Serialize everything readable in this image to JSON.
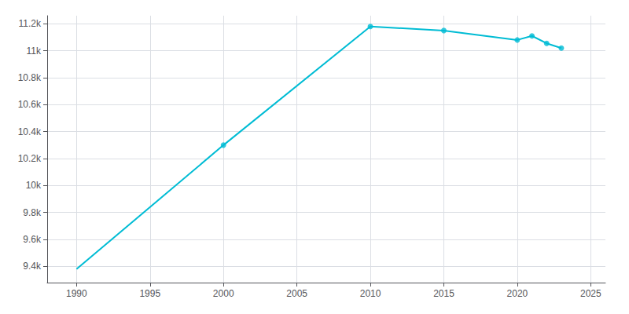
{
  "chart_data": {
    "type": "line",
    "x": [
      1990,
      2000,
      2010,
      2015,
      2020,
      2021,
      2022,
      2023
    ],
    "series": [
      {
        "type": "line",
        "color": "#00BCD4",
        "marker": "none",
        "values": [
          9380,
          10300,
          11180,
          11150,
          11080,
          11110,
          11055,
          11020
        ]
      },
      {
        "type": "scatter",
        "color": "#00BCD4",
        "marker": "circle",
        "x": [
          2000,
          2010,
          2015,
          2020,
          2021,
          2022,
          2023
        ],
        "values": [
          10300,
          11180,
          11150,
          11080,
          11110,
          11055,
          11020
        ]
      }
    ],
    "xlim": [
      1988,
      2026
    ],
    "xticks": [
      1990,
      1995,
      2000,
      2005,
      2010,
      2015,
      2020,
      2025
    ],
    "ylim": [
      9280,
      11260
    ],
    "yticks": [
      {
        "value": 9400,
        "label": "9.4k"
      },
      {
        "value": 9600,
        "label": "9.6k"
      },
      {
        "value": 9800,
        "label": "9.8k"
      },
      {
        "value": 10000,
        "label": "10k"
      },
      {
        "value": 10200,
        "label": "10.2k"
      },
      {
        "value": 10400,
        "label": "10.4k"
      },
      {
        "value": 10600,
        "label": "10.6k"
      },
      {
        "value": 10800,
        "label": "10.8k"
      },
      {
        "value": 11000,
        "label": "11k"
      },
      {
        "value": 11200,
        "label": "11.2k"
      }
    ],
    "grid": true
  }
}
